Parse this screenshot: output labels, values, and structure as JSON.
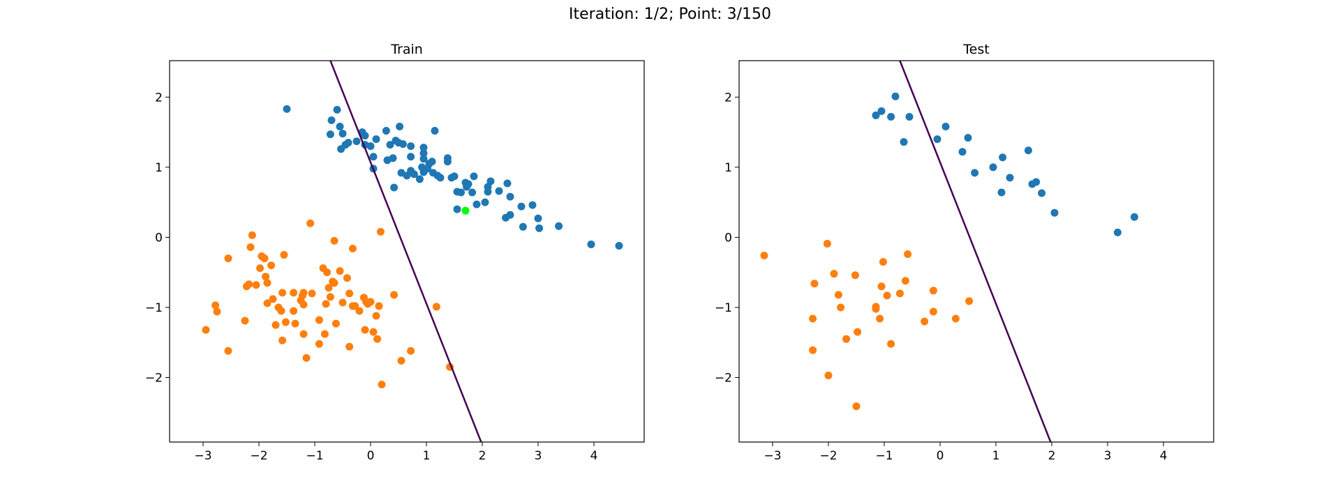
{
  "figure_title": "Iteration: 1/2; Point: 3/150",
  "colors": {
    "class_0": "#1f77b4",
    "class_1": "#ff7f0e",
    "boundary": "#440154",
    "highlight": "#00ff00"
  },
  "chart_data": [
    {
      "type": "scatter",
      "title": "Train",
      "xlim": [
        -3.6,
        4.9
      ],
      "ylim": [
        -2.92,
        2.52
      ],
      "xticks": [
        -3,
        -2,
        -1,
        0,
        1,
        2,
        3,
        4
      ],
      "yticks": [
        -2,
        -1,
        0,
        1,
        2
      ],
      "tick_labels_x": [
        "−3",
        "−2",
        "−1",
        "0",
        "1",
        "2",
        "3",
        "4"
      ],
      "tick_labels_y": [
        "−2",
        "−1",
        "0",
        "1",
        "2"
      ],
      "boundary_line": {
        "x": [
          -0.72,
          1.98
        ],
        "y": [
          2.52,
          -2.92
        ]
      },
      "highlight_point": {
        "x": 1.7,
        "y": 0.38
      },
      "series": [
        {
          "color": "#1f77b4",
          "points": [
            [
              -1.5,
              1.83
            ],
            [
              -0.6,
              1.82
            ],
            [
              -0.7,
              1.67
            ],
            [
              -0.55,
              1.58
            ],
            [
              -0.72,
              1.47
            ],
            [
              -0.5,
              1.48
            ],
            [
              -0.4,
              1.35
            ],
            [
              -0.45,
              1.32
            ],
            [
              -0.53,
              1.26
            ],
            [
              -0.25,
              1.37
            ],
            [
              -0.15,
              1.5
            ],
            [
              -0.1,
              1.45
            ],
            [
              -0.1,
              1.32
            ],
            [
              0.0,
              1.3
            ],
            [
              0.1,
              1.4
            ],
            [
              0.05,
              1.15
            ],
            [
              0.05,
              0.98
            ],
            [
              0.28,
              1.52
            ],
            [
              0.3,
              1.1
            ],
            [
              0.35,
              1.32
            ],
            [
              0.4,
              1.13
            ],
            [
              0.45,
              1.38
            ],
            [
              0.5,
              1.35
            ],
            [
              0.52,
              1.58
            ],
            [
              0.58,
              1.33
            ],
            [
              0.42,
              0.71
            ],
            [
              0.55,
              0.92
            ],
            [
              0.65,
              0.88
            ],
            [
              0.72,
              0.95
            ],
            [
              0.72,
              1.3
            ],
            [
              0.72,
              1.15
            ],
            [
              0.78,
              0.9
            ],
            [
              0.88,
              0.83
            ],
            [
              0.92,
              1.0
            ],
            [
              0.95,
              0.93
            ],
            [
              0.95,
              1.12
            ],
            [
              0.95,
              1.2
            ],
            [
              0.95,
              1.28
            ],
            [
              1.02,
              0.98
            ],
            [
              1.05,
              1.05
            ],
            [
              1.1,
              1.08
            ],
            [
              1.12,
              0.92
            ],
            [
              1.15,
              1.52
            ],
            [
              1.2,
              0.88
            ],
            [
              1.25,
              0.85
            ],
            [
              1.38,
              1.13
            ],
            [
              1.38,
              1.08
            ],
            [
              1.45,
              0.85
            ],
            [
              1.5,
              0.87
            ],
            [
              1.55,
              0.65
            ],
            [
              1.62,
              0.64
            ],
            [
              1.7,
              0.78
            ],
            [
              1.72,
              0.72
            ],
            [
              1.75,
              0.76
            ],
            [
              1.82,
              0.64
            ],
            [
              1.85,
              0.87
            ],
            [
              1.9,
              0.47
            ],
            [
              2.05,
              0.5
            ],
            [
              2.1,
              0.65
            ],
            [
              2.1,
              0.72
            ],
            [
              2.15,
              0.8
            ],
            [
              2.3,
              0.66
            ],
            [
              2.42,
              0.28
            ],
            [
              2.45,
              0.77
            ],
            [
              2.5,
              0.32
            ],
            [
              2.5,
              0.58
            ],
            [
              1.55,
              0.4
            ],
            [
              2.7,
              0.44
            ],
            [
              2.73,
              0.15
            ],
            [
              2.9,
              0.46
            ],
            [
              3.0,
              0.27
            ],
            [
              3.02,
              0.13
            ],
            [
              3.37,
              0.16
            ],
            [
              3.95,
              -0.1
            ],
            [
              4.45,
              -0.12
            ]
          ]
        },
        {
          "color": "#ff7f0e",
          "points": [
            [
              -2.95,
              -1.32
            ],
            [
              -2.78,
              -0.97
            ],
            [
              -2.75,
              -1.06
            ],
            [
              -2.55,
              -1.62
            ],
            [
              -2.55,
              -0.3
            ],
            [
              -2.25,
              -1.19
            ],
            [
              -2.22,
              -0.7
            ],
            [
              -2.18,
              -0.67
            ],
            [
              -2.15,
              -0.14
            ],
            [
              -2.12,
              0.03
            ],
            [
              -2.05,
              -0.68
            ],
            [
              -1.98,
              -0.44
            ],
            [
              -1.95,
              -0.27
            ],
            [
              -1.9,
              -0.3
            ],
            [
              -1.88,
              -0.56
            ],
            [
              -1.85,
              -0.65
            ],
            [
              -1.85,
              -0.94
            ],
            [
              -1.78,
              -0.4
            ],
            [
              -1.75,
              -0.88
            ],
            [
              -1.7,
              -1.25
            ],
            [
              -1.65,
              -1.0
            ],
            [
              -1.6,
              -1.05
            ],
            [
              -1.58,
              -0.79
            ],
            [
              -1.58,
              -1.47
            ],
            [
              -1.55,
              -0.25
            ],
            [
              -1.52,
              -1.21
            ],
            [
              -1.38,
              -0.79
            ],
            [
              -1.38,
              -1.05
            ],
            [
              -1.35,
              -1.23
            ],
            [
              -1.25,
              -0.9
            ],
            [
              -1.22,
              -0.83
            ],
            [
              -1.2,
              -0.96
            ],
            [
              -1.2,
              -0.79
            ],
            [
              -1.2,
              -1.38
            ],
            [
              -1.15,
              -1.72
            ],
            [
              -1.08,
              0.2
            ],
            [
              -1.05,
              -0.8
            ],
            [
              -0.92,
              -1.18
            ],
            [
              -0.92,
              -1.52
            ],
            [
              -0.85,
              -0.44
            ],
            [
              -0.82,
              -1.38
            ],
            [
              -0.8,
              -0.95
            ],
            [
              -0.78,
              -0.5
            ],
            [
              -0.75,
              -0.72
            ],
            [
              -0.72,
              -0.85
            ],
            [
              -0.68,
              -0.63
            ],
            [
              -0.65,
              -0.05
            ],
            [
              -0.65,
              -0.65
            ],
            [
              -0.62,
              -1.23
            ],
            [
              -0.55,
              -0.48
            ],
            [
              -0.5,
              -0.93
            ],
            [
              -0.42,
              -0.58
            ],
            [
              -0.38,
              -0.8
            ],
            [
              -0.38,
              -1.56
            ],
            [
              -0.32,
              -0.16
            ],
            [
              -0.32,
              -0.98
            ],
            [
              -0.28,
              -0.98
            ],
            [
              -0.2,
              -1.05
            ],
            [
              -0.12,
              -0.86
            ],
            [
              -0.1,
              -1.32
            ],
            [
              -0.08,
              -0.92
            ],
            [
              -0.05,
              -0.95
            ],
            [
              0.0,
              -0.92
            ],
            [
              0.05,
              -1.35
            ],
            [
              0.1,
              -1.12
            ],
            [
              0.12,
              -1.45
            ],
            [
              0.15,
              -0.98
            ],
            [
              0.18,
              0.08
            ],
            [
              0.2,
              -2.1
            ],
            [
              0.42,
              -0.82
            ],
            [
              0.55,
              -1.76
            ],
            [
              0.72,
              -1.62
            ],
            [
              1.18,
              -0.99
            ],
            [
              1.42,
              -1.85
            ]
          ]
        }
      ]
    },
    {
      "type": "scatter",
      "title": "Test",
      "xlim": [
        -3.6,
        4.9
      ],
      "ylim": [
        -2.92,
        2.52
      ],
      "xticks": [
        -3,
        -2,
        -1,
        0,
        1,
        2,
        3,
        4
      ],
      "yticks": [
        -2,
        -1,
        0,
        1,
        2
      ],
      "tick_labels_x": [
        "−3",
        "−2",
        "−1",
        "0",
        "1",
        "2",
        "3",
        "4"
      ],
      "tick_labels_y": [
        "−2",
        "−1",
        "0",
        "1",
        "2"
      ],
      "boundary_line": {
        "x": [
          -0.72,
          1.98
        ],
        "y": [
          2.52,
          -2.92
        ]
      },
      "series": [
        {
          "color": "#1f77b4",
          "points": [
            [
              -0.8,
              2.01
            ],
            [
              -1.15,
              1.74
            ],
            [
              -1.05,
              1.8
            ],
            [
              -0.88,
              1.72
            ],
            [
              -0.55,
              1.72
            ],
            [
              -0.65,
              1.36
            ],
            [
              -0.05,
              1.4
            ],
            [
              0.1,
              1.58
            ],
            [
              0.4,
              1.22
            ],
            [
              0.5,
              1.42
            ],
            [
              0.62,
              0.92
            ],
            [
              0.95,
              1.0
            ],
            [
              1.1,
              0.64
            ],
            [
              1.12,
              1.14
            ],
            [
              1.25,
              0.85
            ],
            [
              1.58,
              1.24
            ],
            [
              1.65,
              0.76
            ],
            [
              1.72,
              0.79
            ],
            [
              1.82,
              0.63
            ],
            [
              2.05,
              0.35
            ],
            [
              3.18,
              0.07
            ],
            [
              3.48,
              0.29
            ]
          ]
        },
        {
          "color": "#ff7f0e",
          "points": [
            [
              -3.15,
              -0.26
            ],
            [
              -2.25,
              -0.66
            ],
            [
              -2.28,
              -1.16
            ],
            [
              -2.28,
              -1.61
            ],
            [
              -2.02,
              -0.09
            ],
            [
              -2.0,
              -1.97
            ],
            [
              -1.9,
              -0.52
            ],
            [
              -1.82,
              -0.82
            ],
            [
              -1.78,
              -1.0
            ],
            [
              -1.68,
              -1.45
            ],
            [
              -1.52,
              -0.54
            ],
            [
              -1.5,
              -2.41
            ],
            [
              -1.48,
              -1.35
            ],
            [
              -1.15,
              -0.99
            ],
            [
              -1.15,
              -1.02
            ],
            [
              -1.08,
              -1.16
            ],
            [
              -1.05,
              -0.7
            ],
            [
              -1.02,
              -0.35
            ],
            [
              -0.95,
              -0.83
            ],
            [
              -0.88,
              -1.52
            ],
            [
              -0.72,
              -0.8
            ],
            [
              -0.62,
              -0.62
            ],
            [
              -0.58,
              -0.24
            ],
            [
              -0.28,
              -1.2
            ],
            [
              -0.12,
              -1.06
            ],
            [
              -0.12,
              -0.76
            ],
            [
              0.28,
              -1.16
            ],
            [
              0.52,
              -0.91
            ]
          ]
        }
      ]
    }
  ]
}
